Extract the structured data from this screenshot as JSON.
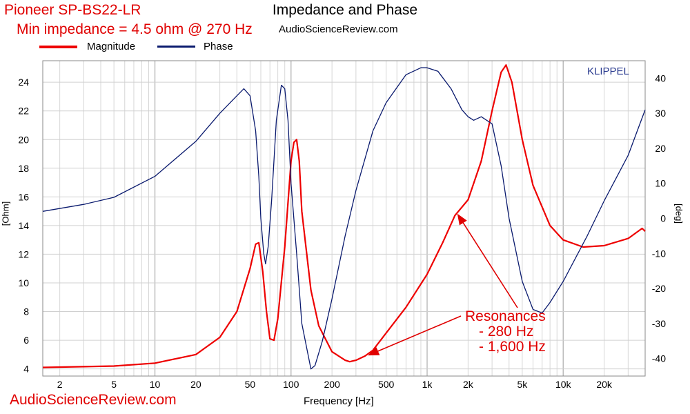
{
  "chart_data": {
    "type": "line",
    "title": "Impedance and Phase",
    "subtitle_lines": [
      "Pioneer SP-BS22-LR",
      "Min impedance = 4.5 ohm @ 270 Hz"
    ],
    "source_top": "AudioScienceReview.com",
    "source_bottom": "AudioScienceReview.com",
    "brand": "KLIPPEL",
    "xlabel": "Frequency [Hz]",
    "ylabel_left": "[Ohm]",
    "ylabel_right": "[deg]",
    "x_scale": "log",
    "xlim": [
      1.5,
      40000
    ],
    "ylim_left": [
      3.5,
      25.5
    ],
    "ylim_right": [
      -45,
      45
    ],
    "x_ticks": [
      {
        "v": 2,
        "label": "2"
      },
      {
        "v": 5,
        "label": "5"
      },
      {
        "v": 10,
        "label": "10"
      },
      {
        "v": 20,
        "label": "20"
      },
      {
        "v": 50,
        "label": "50"
      },
      {
        "v": 100,
        "label": "100"
      },
      {
        "v": 200,
        "label": "200"
      },
      {
        "v": 500,
        "label": "500"
      },
      {
        "v": 1000,
        "label": "1k"
      },
      {
        "v": 2000,
        "label": "2k"
      },
      {
        "v": 5000,
        "label": "5k"
      },
      {
        "v": 10000,
        "label": "10k"
      },
      {
        "v": 20000,
        "label": "20k"
      }
    ],
    "y_left_ticks": [
      4,
      6,
      8,
      10,
      12,
      14,
      16,
      18,
      20,
      22,
      24
    ],
    "y_right_ticks": [
      40,
      30,
      20,
      10,
      0,
      -10,
      -20,
      -30,
      -40
    ],
    "grid": true,
    "legend_placement": "top-left",
    "series": [
      {
        "name": "Magnitude",
        "color": "#ee0000",
        "axis": "left",
        "x": [
          1.5,
          5,
          10,
          20,
          30,
          40,
          50,
          55,
          58,
          62,
          66,
          70,
          75,
          80,
          90,
          100,
          105,
          110,
          115,
          120,
          140,
          160,
          200,
          250,
          270,
          300,
          350,
          400,
          500,
          700,
          1000,
          1300,
          1600,
          2000,
          2500,
          3000,
          3500,
          3800,
          4200,
          5000,
          6000,
          8000,
          10000,
          14000,
          20000,
          30000,
          38000,
          40000
        ],
        "y": [
          4.1,
          4.2,
          4.4,
          5.0,
          6.2,
          8.0,
          11.0,
          12.7,
          12.8,
          10.8,
          8.0,
          6.1,
          6.0,
          7.5,
          12.5,
          18.5,
          19.8,
          20.0,
          18.5,
          15.0,
          9.5,
          7.0,
          5.2,
          4.6,
          4.5,
          4.6,
          4.9,
          5.3,
          6.5,
          8.3,
          10.6,
          12.8,
          14.7,
          15.8,
          18.5,
          22.0,
          24.7,
          25.2,
          24.0,
          20.0,
          16.8,
          14.0,
          13.0,
          12.5,
          12.6,
          13.1,
          13.8,
          13.6
        ]
      },
      {
        "name": "Phase",
        "color": "#0a1a6e",
        "axis": "right",
        "x": [
          1.5,
          3,
          5,
          10,
          20,
          30,
          40,
          45,
          50,
          55,
          58,
          60,
          63,
          65,
          68,
          72,
          78,
          85,
          90,
          95,
          100,
          110,
          120,
          140,
          150,
          170,
          200,
          250,
          300,
          400,
          500,
          700,
          900,
          1000,
          1200,
          1500,
          1800,
          2000,
          2200,
          2500,
          3000,
          3500,
          4000,
          5000,
          6000,
          7000,
          8000,
          10000,
          15000,
          20000,
          30000,
          35000,
          40000
        ],
        "y": [
          2,
          4,
          6,
          12,
          22,
          30,
          35,
          37,
          35,
          25,
          12,
          0,
          -10,
          -13,
          -8,
          5,
          28,
          38,
          37,
          28,
          10,
          -10,
          -30,
          -43,
          -42,
          -35,
          -23,
          -5,
          8,
          25,
          33,
          41,
          43,
          43,
          42,
          37,
          31,
          29,
          28,
          29,
          27,
          15,
          0,
          -18,
          -26,
          -27,
          -24,
          -18,
          -5,
          5,
          18,
          25,
          31
        ]
      }
    ],
    "annotations": {
      "lines": [
        "Resonances",
        "- 280 Hz",
        "- 1,600 Hz"
      ],
      "arrows_to": [
        {
          "x": 380,
          "y": 5.0
        },
        {
          "x": 1700,
          "y": 14.7
        }
      ]
    }
  }
}
